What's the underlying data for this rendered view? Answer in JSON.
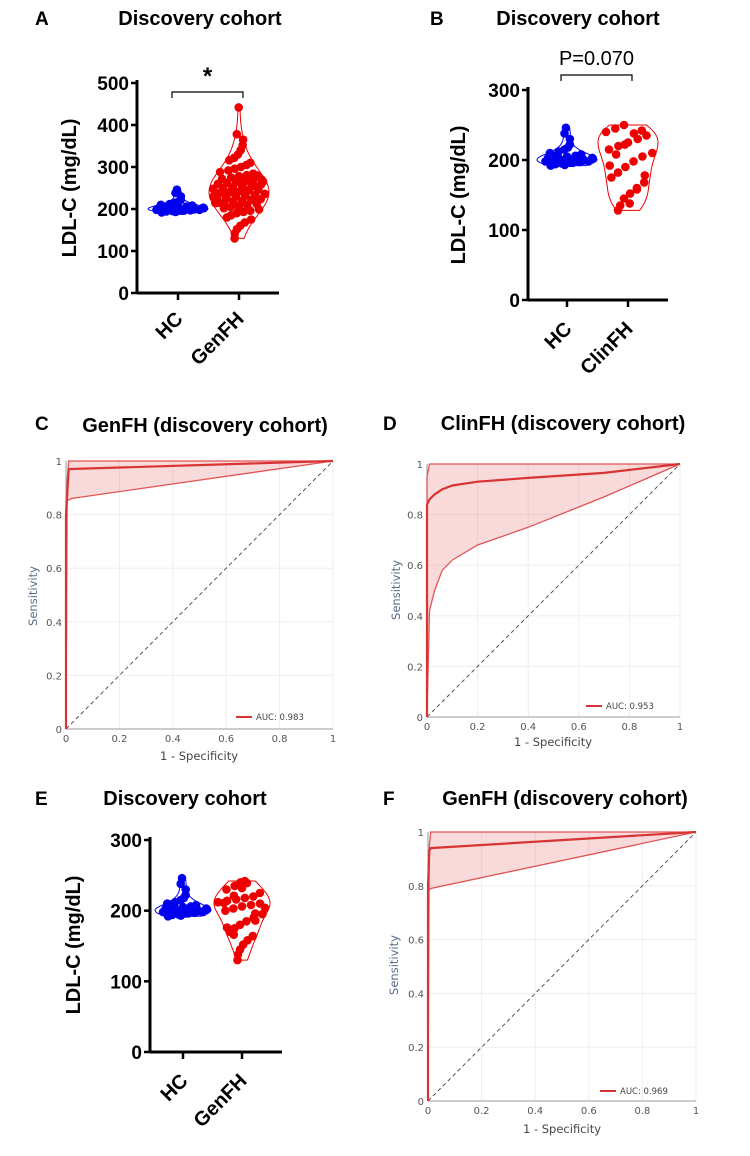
{
  "chart_data": [
    {
      "panel": "A",
      "type": "violin",
      "title": "Discovery cohort",
      "ylabel": "LDL-C  (mg/dL)",
      "ylim": [
        0,
        500
      ],
      "yticks": [
        "0",
        "100",
        "200",
        "300",
        "400",
        "500"
      ],
      "categories": [
        "HC",
        "GenFH"
      ],
      "significance": "*",
      "series": [
        {
          "name": "HC",
          "color": "#0000ee",
          "values": [
            192,
            194,
            195,
            196,
            197,
            198,
            198,
            199,
            200,
            200,
            201,
            202,
            203,
            204,
            205,
            206,
            208,
            210,
            212,
            215,
            218,
            222,
            230,
            238,
            246,
            193,
            196,
            199,
            203,
            207
          ]
        },
        {
          "name": "GenFH",
          "color": "#ee0000",
          "values": [
            130,
            142,
            152,
            160,
            168,
            175,
            180,
            185,
            190,
            193,
            196,
            199,
            202,
            205,
            208,
            210,
            212,
            214,
            216,
            218,
            220,
            222,
            224,
            226,
            228,
            230,
            232,
            234,
            236,
            238,
            240,
            242,
            244,
            246,
            248,
            250,
            252,
            254,
            256,
            258,
            260,
            262,
            264,
            266,
            268,
            270,
            272,
            275,
            278,
            281,
            284,
            288,
            292,
            296,
            300,
            305,
            310,
            316,
            322,
            330,
            340,
            352,
            365,
            378,
            442,
            200,
            210,
            220,
            230,
            240,
            250,
            260,
            270,
            280,
            215,
            225,
            235,
            245,
            255,
            265
          ]
        }
      ]
    },
    {
      "panel": "B",
      "type": "violin",
      "title": "Discovery cohort",
      "ylabel": "LDL-C  (mg/dL)",
      "ylim": [
        0,
        300
      ],
      "yticks": [
        "0",
        "100",
        "200",
        "300"
      ],
      "categories": [
        "HC",
        "ClinFH"
      ],
      "significance": "P=0.070",
      "series": [
        {
          "name": "HC",
          "color": "#0000ee",
          "values": [
            192,
            194,
            195,
            196,
            197,
            198,
            198,
            199,
            200,
            200,
            201,
            202,
            203,
            204,
            205,
            206,
            208,
            210,
            212,
            215,
            218,
            222,
            230,
            238,
            246,
            193,
            196,
            199,
            203,
            207
          ]
        },
        {
          "name": "ClinFH",
          "color": "#ee0000",
          "values": [
            128,
            135,
            145,
            152,
            160,
            168,
            175,
            182,
            190,
            198,
            205,
            210,
            215,
            220,
            225,
            230,
            235,
            240,
            245,
            250,
            138,
            158,
            178,
            192,
            208,
            222,
            238,
            242
          ]
        }
      ]
    },
    {
      "panel": "C",
      "type": "line",
      "title": "GenFH (discovery cohort)",
      "xlabel": "1 - Specificity",
      "ylabel": "Sensitivity",
      "xlim": [
        0,
        1
      ],
      "ylim": [
        0,
        1
      ],
      "xticks": [
        "0",
        "0.2",
        "0.4",
        "0.6",
        "0.8",
        "1"
      ],
      "yticks": [
        "0",
        "0.2",
        "0.4",
        "0.6",
        "0.8",
        "1"
      ],
      "legend": "AUC: 0.983",
      "auc": 0.983,
      "series": [
        {
          "name": "ROC",
          "x": [
            0,
            0,
            0.01,
            0.02,
            1
          ],
          "y": [
            0,
            0.8,
            0.97,
            0.97,
            1
          ]
        },
        {
          "name": "upper",
          "x": [
            0,
            0.005,
            0.01,
            1
          ],
          "y": [
            0,
            0.93,
            1,
            1
          ]
        },
        {
          "name": "lower",
          "x": [
            0,
            0,
            0.02,
            1
          ],
          "y": [
            0,
            0.85,
            0.86,
            1
          ]
        }
      ]
    },
    {
      "panel": "D",
      "type": "line",
      "title": "ClinFH (discovery cohort)",
      "xlabel": "1 - Specificity",
      "ylabel": "Sensitivity",
      "xlim": [
        0,
        1
      ],
      "ylim": [
        0,
        1
      ],
      "xticks": [
        "0",
        "0.2",
        "0.4",
        "0.6",
        "0.8",
        "1"
      ],
      "yticks": [
        "0",
        "0.2",
        "0.4",
        "0.6",
        "0.8",
        "1"
      ],
      "legend": "AUC: 0.953",
      "auc": 0.953,
      "series": [
        {
          "name": "ROC",
          "x": [
            0,
            0,
            0.01,
            0.03,
            0.06,
            0.1,
            0.2,
            0.4,
            0.7,
            1
          ],
          "y": [
            0,
            0.84,
            0.86,
            0.88,
            0.9,
            0.915,
            0.93,
            0.945,
            0.965,
            1
          ]
        },
        {
          "name": "upper",
          "x": [
            0,
            0,
            0.01,
            1
          ],
          "y": [
            0,
            0.95,
            1,
            1
          ]
        },
        {
          "name": "lower",
          "x": [
            0,
            0.01,
            0.03,
            0.06,
            0.1,
            0.2,
            0.4,
            0.7,
            1
          ],
          "y": [
            0,
            0.42,
            0.5,
            0.58,
            0.62,
            0.68,
            0.75,
            0.87,
            1
          ]
        }
      ]
    },
    {
      "panel": "E",
      "type": "violin",
      "title": "Discovery cohort",
      "ylabel": "LDL-C  (mg/dL)",
      "ylim": [
        0,
        300
      ],
      "yticks": [
        "0",
        "100",
        "200",
        "300"
      ],
      "categories": [
        "HC",
        "GenFH"
      ],
      "significance": "",
      "series": [
        {
          "name": "HC",
          "color": "#0000ee",
          "values": [
            192,
            194,
            195,
            196,
            197,
            198,
            198,
            199,
            200,
            200,
            201,
            202,
            203,
            204,
            205,
            206,
            208,
            210,
            212,
            215,
            218,
            222,
            230,
            238,
            246,
            193,
            196,
            199,
            203,
            207
          ]
        },
        {
          "name": "GenFH",
          "color": "#ee0000",
          "values": [
            130,
            138,
            145,
            152,
            158,
            164,
            170,
            175,
            180,
            185,
            190,
            195,
            200,
            203,
            206,
            208,
            210,
            212,
            214,
            216,
            218,
            220,
            225,
            230,
            235,
            240,
            242,
            196,
            204,
            211,
            221,
            232,
            239,
            186,
            176,
            166
          ]
        }
      ]
    },
    {
      "panel": "F",
      "type": "line",
      "title": "GenFH (discovery cohort)",
      "xlabel": "1 - Specificity",
      "ylabel": "Sensitivity",
      "xlim": [
        0,
        1
      ],
      "ylim": [
        0,
        1
      ],
      "xticks": [
        "0",
        "0.2",
        "0.4",
        "0.6",
        "0.8",
        "1"
      ],
      "yticks": [
        "0",
        "0.2",
        "0.4",
        "0.6",
        "0.8",
        "1"
      ],
      "legend": "AUC: 0.969",
      "auc": 0.969,
      "series": [
        {
          "name": "ROC",
          "x": [
            0,
            0,
            0.005,
            0.01,
            1
          ],
          "y": [
            0,
            0.8,
            0.93,
            0.94,
            1
          ]
        },
        {
          "name": "upper",
          "x": [
            0,
            0.005,
            0.01,
            1
          ],
          "y": [
            0,
            0.95,
            1,
            1
          ]
        },
        {
          "name": "lower",
          "x": [
            0,
            0,
            0.01,
            1
          ],
          "y": [
            0,
            0.78,
            0.79,
            1
          ]
        }
      ]
    }
  ]
}
